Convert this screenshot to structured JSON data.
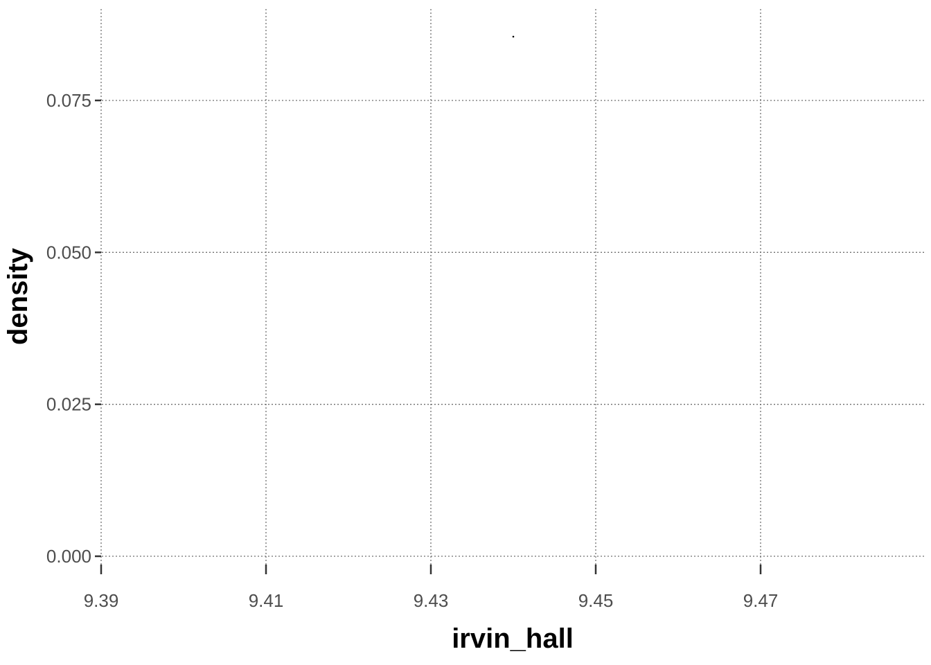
{
  "chart_data": {
    "type": "scatter",
    "xlabel": "irvin_hall",
    "ylabel": "density",
    "x_ticks": [
      "9.39",
      "9.41",
      "9.43",
      "9.45",
      "9.47"
    ],
    "x_tick_values": [
      9.39,
      9.41,
      9.43,
      9.45,
      9.47
    ],
    "y_ticks": [
      "0.000",
      "0.025",
      "0.050",
      "0.075"
    ],
    "y_tick_values": [
      0.0,
      0.025,
      0.05,
      0.075
    ],
    "xlim": [
      9.39,
      9.4895
    ],
    "ylim": [
      0.0,
      0.0856
    ],
    "series": [
      {
        "x": [
          9.44
        ],
        "y": [
          0.0855
        ]
      }
    ],
    "grid": "dotted",
    "colors": {
      "grid": "#6e6e6e",
      "tick_text": "#4d4d4d",
      "axis_title": "#000000",
      "point": "#000000"
    }
  }
}
